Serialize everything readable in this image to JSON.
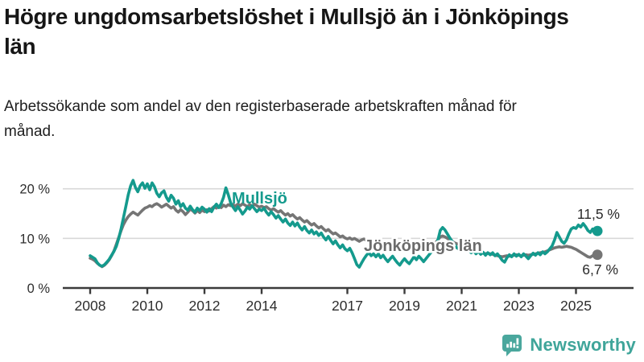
{
  "header": {
    "title": "Högre ungdomsarbetslöshet i Mullsjö än i Jönköpings län",
    "subtitle": "Arbetssökande som andel av den registerbaserade arbetskraften månad för månad."
  },
  "chart_data": {
    "type": "line",
    "title": "Högre ungdomsarbetslöshet i Mullsjö än i Jönköpings län",
    "subtitle": "Arbetssökande som andel av den registerbaserade arbetskraften månad för månad.",
    "unit": "%",
    "x_start": "2008-01",
    "x_end": "2025-10",
    "x_interval": "monthly",
    "grid": "horizontal",
    "legend_position": "inline-labels",
    "x_axis": {
      "ticks": [
        {
          "year": 2008,
          "label": "2008"
        },
        {
          "year": 2010,
          "label": "2010"
        },
        {
          "year": 2012,
          "label": "2012"
        },
        {
          "year": 2014,
          "label": "2014"
        },
        {
          "year": 2017,
          "label": "2017"
        },
        {
          "year": 2019,
          "label": "2019"
        },
        {
          "year": 2021,
          "label": "2021"
        },
        {
          "year": 2023,
          "label": "2023"
        },
        {
          "year": 2025,
          "label": "2025"
        }
      ]
    },
    "y_axis": {
      "lim": [
        0,
        23.5
      ],
      "ticks": [
        {
          "value": 20,
          "label": "20 %"
        },
        {
          "value": 10,
          "label": "10 %"
        },
        {
          "value": 0,
          "label": "0 %"
        }
      ]
    },
    "colors": {
      "mullsjo": "#149a8d",
      "county": "#757575",
      "grid": "#d8d8d8",
      "axis": "#3b3b3b",
      "tick_text": "#2e2e2e",
      "value_label_text": "#2b2b2b",
      "county_label": "#6b6b6b"
    },
    "series": [
      {
        "name": "Mullsjö",
        "color": "#149a8d",
        "end_label": "11,5 %",
        "end_value": 11.5,
        "values": [
          6.5,
          6.2,
          5.9,
          5.1,
          4.6,
          4.4,
          4.7,
          5.2,
          5.8,
          6.6,
          7.4,
          8.4,
          10.0,
          12.0,
          14.2,
          16.5,
          18.8,
          20.6,
          21.7,
          20.3,
          19.4,
          20.6,
          21.2,
          20.1,
          21.0,
          19.8,
          21.2,
          20.4,
          19.1,
          18.4,
          19.2,
          19.6,
          18.3,
          17.5,
          18.7,
          18.1,
          16.9,
          17.6,
          16.4,
          17.0,
          16.1,
          15.7,
          16.5,
          15.8,
          15.3,
          16.1,
          15.6,
          16.3,
          15.9,
          15.3,
          16.0,
          15.4,
          16.3,
          16.9,
          16.2,
          17.0,
          18.3,
          20.2,
          18.8,
          17.2,
          16.3,
          15.6,
          16.4,
          15.7,
          14.9,
          15.5,
          16.3,
          15.9,
          16.6,
          16.0,
          15.4,
          15.9,
          15.6,
          16.1,
          15.3,
          14.7,
          15.4,
          14.8,
          14.1,
          14.6,
          13.9,
          13.3,
          13.9,
          13.1,
          12.6,
          13.3,
          12.5,
          13.1,
          12.3,
          11.7,
          12.4,
          11.6,
          11.1,
          11.7,
          10.9,
          11.3,
          10.6,
          11.1,
          10.3,
          9.7,
          10.4,
          9.6,
          8.9,
          9.5,
          8.7,
          8.1,
          8.7,
          7.9,
          7.5,
          8.0,
          7.1,
          5.9,
          4.7,
          4.2,
          5.1,
          5.9,
          6.6,
          7.1,
          6.5,
          6.9,
          6.3,
          6.9,
          6.1,
          6.6,
          5.9,
          5.3,
          5.9,
          6.4,
          5.7,
          5.1,
          4.6,
          5.3,
          5.9,
          5.3,
          4.9,
          5.6,
          6.3,
          5.7,
          6.4,
          5.9,
          5.3,
          5.9,
          6.5,
          7.1,
          7.6,
          8.1,
          9.6,
          11.6,
          12.2,
          11.7,
          10.9,
          10.1,
          9.4,
          8.7,
          8.1,
          7.8,
          8.2,
          7.8,
          8.3,
          7.6,
          7.1,
          7.5,
          6.9,
          7.4,
          6.8,
          7.2,
          6.6,
          7.1,
          6.7,
          7.1,
          6.5,
          6.9,
          6.3,
          5.6,
          5.2,
          6.1,
          6.7,
          6.3,
          6.9,
          6.4,
          6.8,
          6.3,
          6.9,
          6.4,
          5.9,
          6.5,
          7.0,
          6.6,
          7.1,
          6.7,
          7.3,
          6.9,
          7.3,
          7.9,
          8.5,
          9.7,
          11.2,
          10.3,
          9.4,
          9.0,
          9.7,
          10.9,
          11.9,
          12.2,
          12.0,
          12.7,
          12.3,
          13.0,
          12.4,
          11.6,
          11.2,
          11.9,
          11.7,
          11.5
        ]
      },
      {
        "name": "Jönköpings län",
        "color": "#757575",
        "end_label": "6,7 %",
        "end_value": 6.7,
        "values": [
          6.0,
          5.8,
          5.5,
          5.0,
          4.6,
          4.3,
          4.6,
          5.1,
          5.7,
          6.5,
          7.5,
          8.8,
          10.2,
          11.6,
          12.8,
          13.7,
          14.4,
          14.9,
          15.3,
          15.0,
          14.7,
          15.2,
          15.7,
          16.1,
          16.3,
          16.6,
          16.4,
          16.8,
          17.0,
          16.7,
          16.3,
          16.6,
          16.9,
          16.5,
          16.1,
          16.4,
          15.7,
          15.3,
          15.8,
          15.4,
          14.8,
          15.3,
          15.9,
          15.6,
          15.1,
          15.6,
          15.2,
          15.7,
          15.4,
          15.8,
          15.5,
          16.0,
          16.4,
          16.1,
          16.5,
          16.2,
          16.7,
          16.4,
          16.8,
          16.6,
          16.8,
          16.5,
          16.9,
          16.6,
          17.0,
          16.7,
          16.4,
          16.8,
          16.5,
          16.9,
          16.6,
          16.3,
          16.5,
          16.2,
          16.4,
          16.0,
          15.7,
          16.0,
          15.6,
          15.3,
          15.6,
          15.1,
          14.7,
          15.0,
          14.5,
          14.8,
          14.3,
          13.9,
          14.2,
          13.7,
          13.3,
          13.6,
          13.1,
          12.7,
          13.0,
          12.5,
          12.1,
          12.4,
          11.9,
          11.5,
          11.8,
          11.3,
          10.9,
          11.1,
          10.7,
          10.3,
          10.5,
          10.1,
          9.9,
          10.1,
          9.8,
          10.0,
          9.7,
          9.4,
          9.7,
          9.9,
          9.6,
          9.3,
          9.5,
          9.7,
          9.5,
          9.7,
          9.4,
          9.1,
          9.3,
          9.0,
          8.8,
          9.0,
          8.7,
          8.5,
          8.7,
          8.4,
          8.6,
          8.4,
          8.2,
          8.4,
          8.6,
          8.3,
          8.5,
          8.2,
          8.0,
          8.2,
          8.4,
          8.7,
          8.9,
          9.1,
          9.7,
          10.3,
          10.5,
          10.3,
          10.0,
          9.7,
          9.4,
          9.1,
          8.9,
          8.7,
          8.8,
          8.6,
          8.4,
          8.2,
          8.0,
          7.8,
          7.6,
          7.4,
          7.2,
          7.0,
          6.9,
          7.0,
          6.9,
          6.8,
          6.6,
          6.5,
          6.4,
          6.3,
          6.4,
          6.5,
          6.4,
          6.5,
          6.6,
          6.7,
          6.6,
          6.5,
          6.6,
          6.7,
          6.6,
          6.7,
          6.8,
          6.9,
          7.0,
          7.1,
          7.2,
          7.3,
          7.5,
          7.7,
          7.9,
          8.1,
          8.2,
          8.3,
          8.2,
          8.3,
          8.4,
          8.3,
          8.2,
          8.0,
          7.8,
          7.5,
          7.2,
          6.9,
          6.6,
          6.3,
          6.2,
          6.5,
          6.9,
          6.7
        ]
      }
    ]
  },
  "footer": {
    "brand": "Newsworthy",
    "brand_color": "#3fa59a",
    "logo_icon": "newsworthy-bubble-barchart-icon"
  }
}
